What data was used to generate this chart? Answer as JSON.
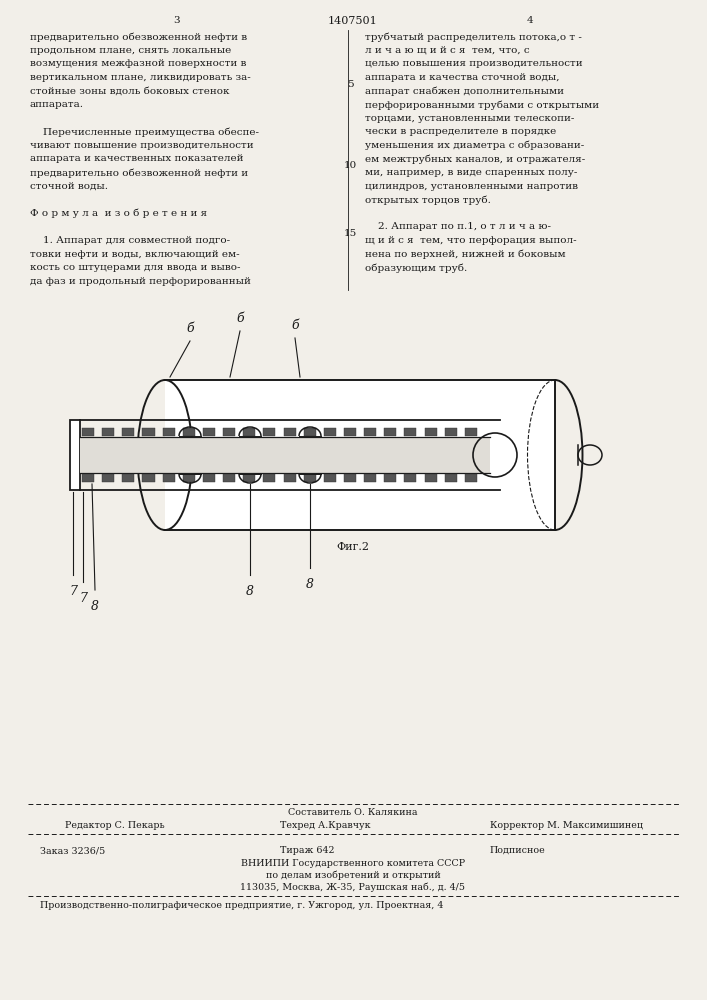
{
  "page_color": "#f2efe9",
  "text_color": "#1a1a1a",
  "page_num_left": "3",
  "page_num_center": "1407501",
  "page_num_right": "4",
  "col_left_lines": [
    "предварительно обезвоженной нефти в",
    "продольном плане, снять локальные",
    "возмущения межфазной поверхности в",
    "вертикальном плане, ликвидировать за-",
    "стойные зоны вдоль боковых стенок",
    "аппарата.",
    "",
    "    Перечисленные преимущества обеспе-",
    "чивают повышение производительности",
    "аппарата и качественных показателей",
    "предварительно обезвоженной нефти и",
    "сточной воды.",
    "",
    "Ф о р м у л а  и з о б р е т е н и я",
    "",
    "    1. Аппарат для совместной подго-",
    "товки нефти и воды, включающий ем-",
    "кость со штуцерами для ввода и выво-",
    "да фаз и продольный перфорированный"
  ],
  "col_right_lines": [
    "трубчатый распределитель потока,о т -",
    "л и ч а ю щ и й с я  тем, что, с",
    "целью повышения производительности",
    "аппарата и качества сточной воды,",
    "аппарат снабжен дополнительными",
    "перфорированными трубами с открытыми",
    "торцами, установленными телескопи-",
    "чески в распределителе в порядке",
    "уменьшения их диаметра с образовани-",
    "ем межтрубных каналов, и отражателя-",
    "ми, например, в виде спаренных полу-",
    "цилиндров, установленными напротив",
    "открытых торцов труб.",
    "",
    "    2. Аппарат по п.1, о т л и ч а ю-",
    "щ и й с я  тем, что перфорация выпол-",
    "нена по верхней, нижней и боковым",
    "образующим труб."
  ],
  "line_num_5_row": 3,
  "line_num_10_row": 9,
  "line_num_15_row": 14,
  "footer_sestavitel_top": "Составитель О. Калякина",
  "footer_redaktor": "Редактор С. Пекарь",
  "footer_tehred": "Техред А.Кравчук",
  "footer_korrektor": "Корректор М. Максимишинец",
  "footer_zakaz": "Заказ 3236/5",
  "footer_tirazh": "Тираж 642",
  "footer_podpisnoe": "Подписное",
  "footer_vniiipi": "ВНИИПИ Государственного комитета СССР",
  "footer_dela": "по делам изобретений и открытий",
  "footer_address": "113035, Москва, Ж-35, Раушская наб., д. 4/5",
  "footer_factory": "Производственно-полиграфическое предприятие, г. Ужгород, ул. Проектная, 4",
  "fig_label": "Фиг.2"
}
